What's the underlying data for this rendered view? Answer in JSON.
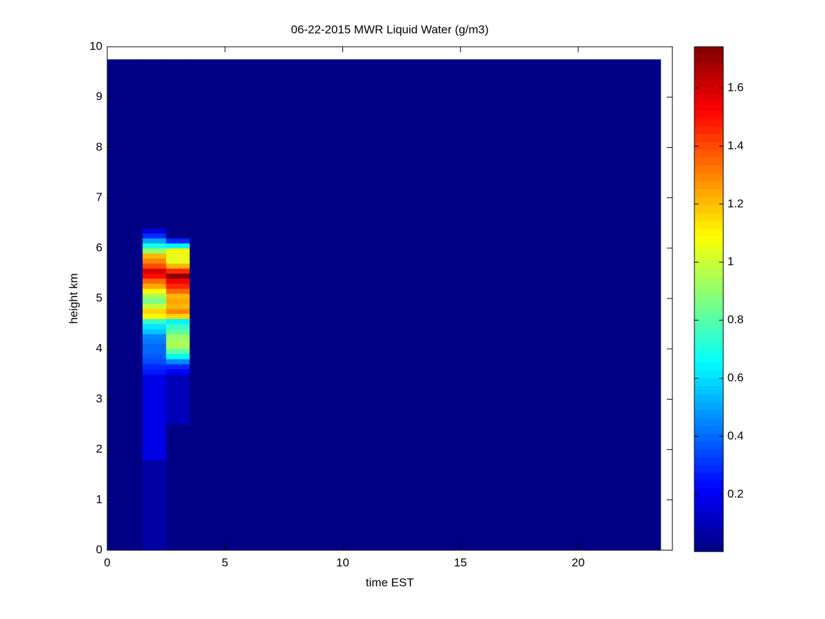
{
  "chart_data": {
    "type": "heatmap",
    "title": "06-22-2015 MWR Liquid Water (g/m3)",
    "x_label": "time EST",
    "y_label": "height km",
    "xlim": [
      0,
      24
    ],
    "xticks": [
      0,
      5,
      10,
      15,
      20
    ],
    "ylim": [
      0,
      10
    ],
    "yticks": [
      0,
      1,
      2,
      3,
      4,
      5,
      6,
      7,
      8,
      9,
      10
    ],
    "colormap": "jet",
    "clim": [
      0.003,
      1.742
    ],
    "cticks": [
      0.2,
      0.4,
      0.6,
      0.8,
      1,
      1.2,
      1.4,
      1.6
    ],
    "x_edges": [
      0,
      1.5,
      2.5,
      3.5,
      23.5
    ],
    "y_edges": [
      0,
      1.8,
      2.5,
      3.5,
      3.6,
      3.7,
      3.8,
      3.9,
      4.0,
      4.1,
      4.2,
      4.3,
      4.4,
      4.5,
      4.6,
      4.7,
      4.8,
      4.9,
      5.0,
      5.1,
      5.2,
      5.3,
      5.4,
      5.5,
      5.6,
      5.7,
      5.8,
      5.9,
      6.0,
      6.1,
      6.2,
      6.3,
      6.4,
      9.75
    ],
    "values": [
      [
        0.01,
        0.01,
        0.01,
        0.01,
        0.01,
        0.01,
        0.01,
        0.01,
        0.01,
        0.01,
        0.01,
        0.01,
        0.01,
        0.01,
        0.01,
        0.01,
        0.01,
        0.01,
        0.01,
        0.01,
        0.01,
        0.01,
        0.01,
        0.01,
        0.01,
        0.01,
        0.01,
        0.01,
        0.01,
        0.01,
        0.01,
        0.01,
        0.01
      ],
      [
        0.08,
        0.18,
        0.18,
        0.25,
        0.3,
        0.35,
        0.38,
        0.4,
        0.4,
        0.42,
        0.45,
        0.55,
        0.62,
        0.75,
        1.1,
        1.15,
        1.0,
        0.85,
        0.95,
        1.1,
        1.25,
        1.35,
        1.5,
        1.6,
        1.4,
        1.3,
        1.2,
        0.9,
        0.7,
        0.5,
        0.3,
        0.15,
        0.01
      ],
      [
        0.02,
        0.02,
        0.1,
        0.2,
        0.3,
        0.45,
        0.65,
        0.8,
        0.95,
        0.95,
        0.9,
        0.8,
        0.75,
        0.65,
        1.15,
        1.3,
        1.2,
        1.25,
        1.2,
        1.35,
        1.45,
        1.55,
        1.74,
        1.45,
        1.2,
        1.05,
        1.05,
        1.1,
        0.65,
        0.3,
        0.01,
        0.01,
        0.01
      ],
      [
        0.01,
        0.01,
        0.01,
        0.01,
        0.01,
        0.01,
        0.01,
        0.01,
        0.01,
        0.01,
        0.01,
        0.01,
        0.01,
        0.01,
        0.01,
        0.01,
        0.01,
        0.01,
        0.01,
        0.01,
        0.01,
        0.01,
        0.01,
        0.01,
        0.01,
        0.01,
        0.01,
        0.01,
        0.01,
        0.01,
        0.01,
        0.01,
        0.01
      ]
    ]
  }
}
